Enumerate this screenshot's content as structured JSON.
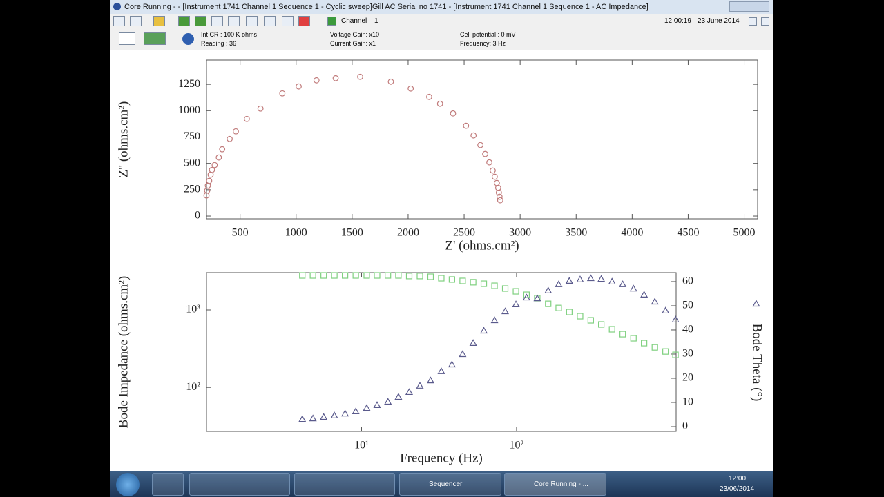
{
  "window": {
    "title": "Core Running -  - [Instrument 1741 Channel 1    Sequence 1 - Cyclic sweep]Gill AC Serial no 1741 - [Instrument 1741 Channel 1    Sequence 1 - AC Impedance]"
  },
  "toolbar": {
    "channel_label": "Channel",
    "channel_number": "1",
    "time": "12:00:19",
    "date": "23 June 2014"
  },
  "status": {
    "int_cr": "Int CR : 100 K ohms",
    "reading": "Reading : 36",
    "voltage_gain": "Voltage Gain: x10",
    "current_gain": "Current Gain: x1",
    "cell_potential": "Cell potential : 0 mV",
    "frequency": "Frequency: 3 Hz"
  },
  "chart_data": [
    {
      "type": "scatter",
      "xlabel": "Z' (ohms.cm²)",
      "ylabel": "Z'' (ohms.cm²)",
      "x": [
        200,
        206,
        212,
        224,
        237,
        249,
        273,
        310,
        340,
        407,
        462,
        560,
        682,
        877,
        1023,
        1182,
        1353,
        1572,
        1846,
        2023,
        2188,
        2285,
        2401,
        2517,
        2584,
        2645,
        2688,
        2725,
        2755,
        2773,
        2792,
        2804,
        2810,
        2816,
        2822
      ],
      "values": [
        196,
        242,
        288,
        334,
        392,
        438,
        484,
        556,
        634,
        732,
        804,
        922,
        1020,
        1164,
        1230,
        1288,
        1308,
        1321,
        1275,
        1210,
        1131,
        1066,
        974,
        857,
        765,
        674,
        589,
        510,
        432,
        373,
        314,
        268,
        222,
        183,
        150
      ],
      "color": "#c07a7a",
      "marker": "circle",
      "xlim": [
        200,
        5120
      ],
      "xticks": [
        500,
        1000,
        1500,
        2000,
        2500,
        3000,
        3500,
        4000,
        4500,
        5000
      ],
      "ylim": [
        -26,
        1480
      ],
      "yticks": [
        0,
        250,
        500,
        750,
        1000,
        1250
      ]
    },
    {
      "type": "scatter",
      "xlabel": "Frequency (Hz)",
      "ylabel": "Bode Impedance (ohms.cm²)",
      "xscale": "log",
      "yscale": "log",
      "x": [
        4.15,
        4.86,
        5.7,
        6.68,
        7.83,
        9.18,
        10.8,
        12.6,
        14.8,
        17.3,
        20.3,
        23.8,
        27.9,
        32.7,
        38.3,
        44.9,
        52.5,
        61.5,
        72.1,
        84.5,
        99.1,
        116,
        136,
        160,
        187,
        219,
        257,
        301,
        352,
        413,
        484,
        568,
        665,
        780,
        914,
        1060
      ],
      "series": [
        {
          "color": "#7fd07f",
          "marker": "square",
          "values": [
            2790,
            2790,
            2790,
            2790,
            2790,
            2790,
            2790,
            2790,
            2790,
            2790,
            2740,
            2740,
            2680,
            2570,
            2470,
            2370,
            2280,
            2180,
            2050,
            1890,
            1740,
            1570,
            1420,
            1200,
            1060,
            940,
            831,
            735,
            650,
            563,
            487,
            431,
            373,
            329,
            291,
            263
          ]
        },
        {
          "name": "Bode Theta (°)",
          "axis": "y2",
          "color": "#5a5a8c",
          "marker": "triangle",
          "values": [
            3.1,
            3.4,
            4.0,
            4.6,
            5.4,
            6.3,
            7.7,
            8.9,
            10.3,
            12.3,
            14.3,
            16.9,
            19.1,
            22.9,
            25.7,
            30.0,
            34.6,
            39.7,
            44.0,
            47.7,
            50.6,
            53.4,
            53.1,
            56.3,
            58.9,
            60.3,
            60.9,
            61.4,
            61.1,
            60.0,
            58.9,
            57.1,
            54.6,
            51.7,
            48.0,
            44.3
          ]
        }
      ],
      "xlim": [
        1,
        1070
      ],
      "xticks": [
        {
          "value": 10,
          "label": "10¹"
        },
        {
          "value": 100,
          "label": "10²"
        }
      ],
      "ylim": [
        27,
        3030
      ],
      "yticks": [
        {
          "value": 100,
          "label": "10²"
        },
        {
          "value": 1000,
          "label": "10³"
        }
      ],
      "y2lim": [
        -2,
        63.7
      ],
      "y2ticks": [
        0,
        10,
        20,
        30,
        40,
        50,
        60
      ]
    }
  ],
  "taskbar": {
    "sequencer": "Sequencer",
    "core": "Core Running - ...",
    "clock_time": "12:00",
    "clock_date": "23/06/2014"
  }
}
